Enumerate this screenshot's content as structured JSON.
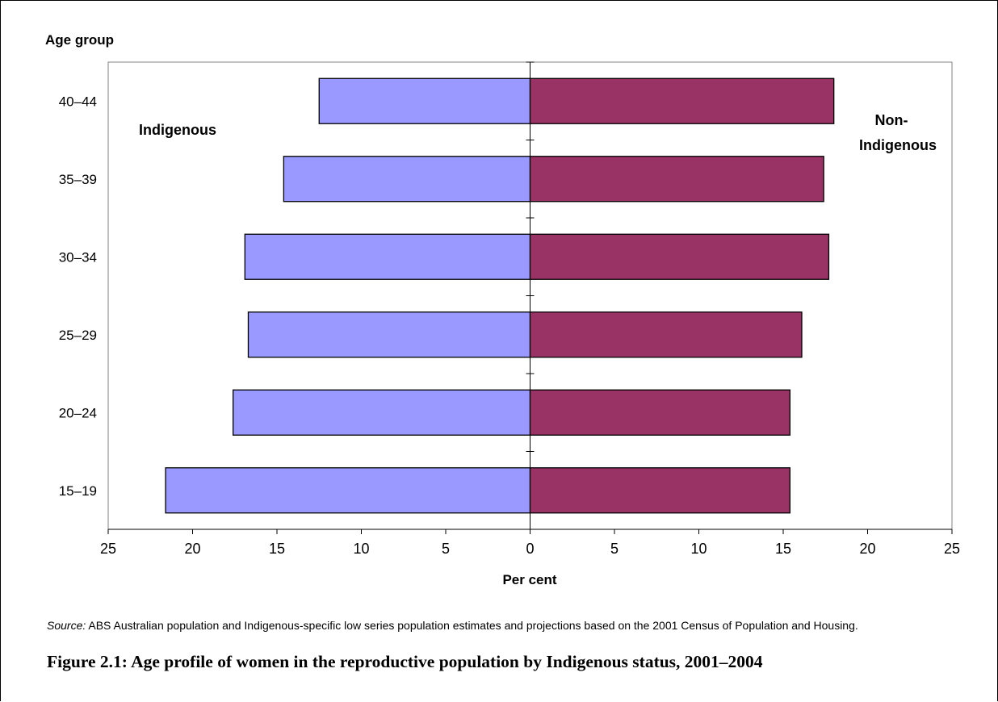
{
  "chart_data": {
    "type": "bar",
    "orientation": "horizontal",
    "ylabel": "Age group",
    "xlabel": "Per cent",
    "categories": [
      "40–44",
      "35–39",
      "30–34",
      "25–29",
      "20–24",
      "15–19"
    ],
    "series": [
      {
        "name": "Indigenous",
        "color": "#9999ff",
        "values": [
          12.5,
          14.6,
          16.9,
          16.7,
          17.6,
          21.6
        ]
      },
      {
        "name": "Non-Indigenous",
        "color": "#993366",
        "values": [
          18.0,
          17.4,
          17.7,
          16.1,
          15.4,
          15.4
        ]
      }
    ],
    "xlim": [
      -25,
      25
    ],
    "xtick_labels": [
      "25",
      "20",
      "15",
      "10",
      "5",
      "0",
      "5",
      "10",
      "15",
      "20",
      "25"
    ],
    "grid": false
  },
  "source": {
    "label": "Source:",
    "text": " ABS Australian population and Indigenous-specific low series population estimates and projections based on the 2001 Census of Population and Housing."
  },
  "caption": "Figure 2.1: Age profile of women in the reproductive population by Indigenous status, 2001–2004"
}
